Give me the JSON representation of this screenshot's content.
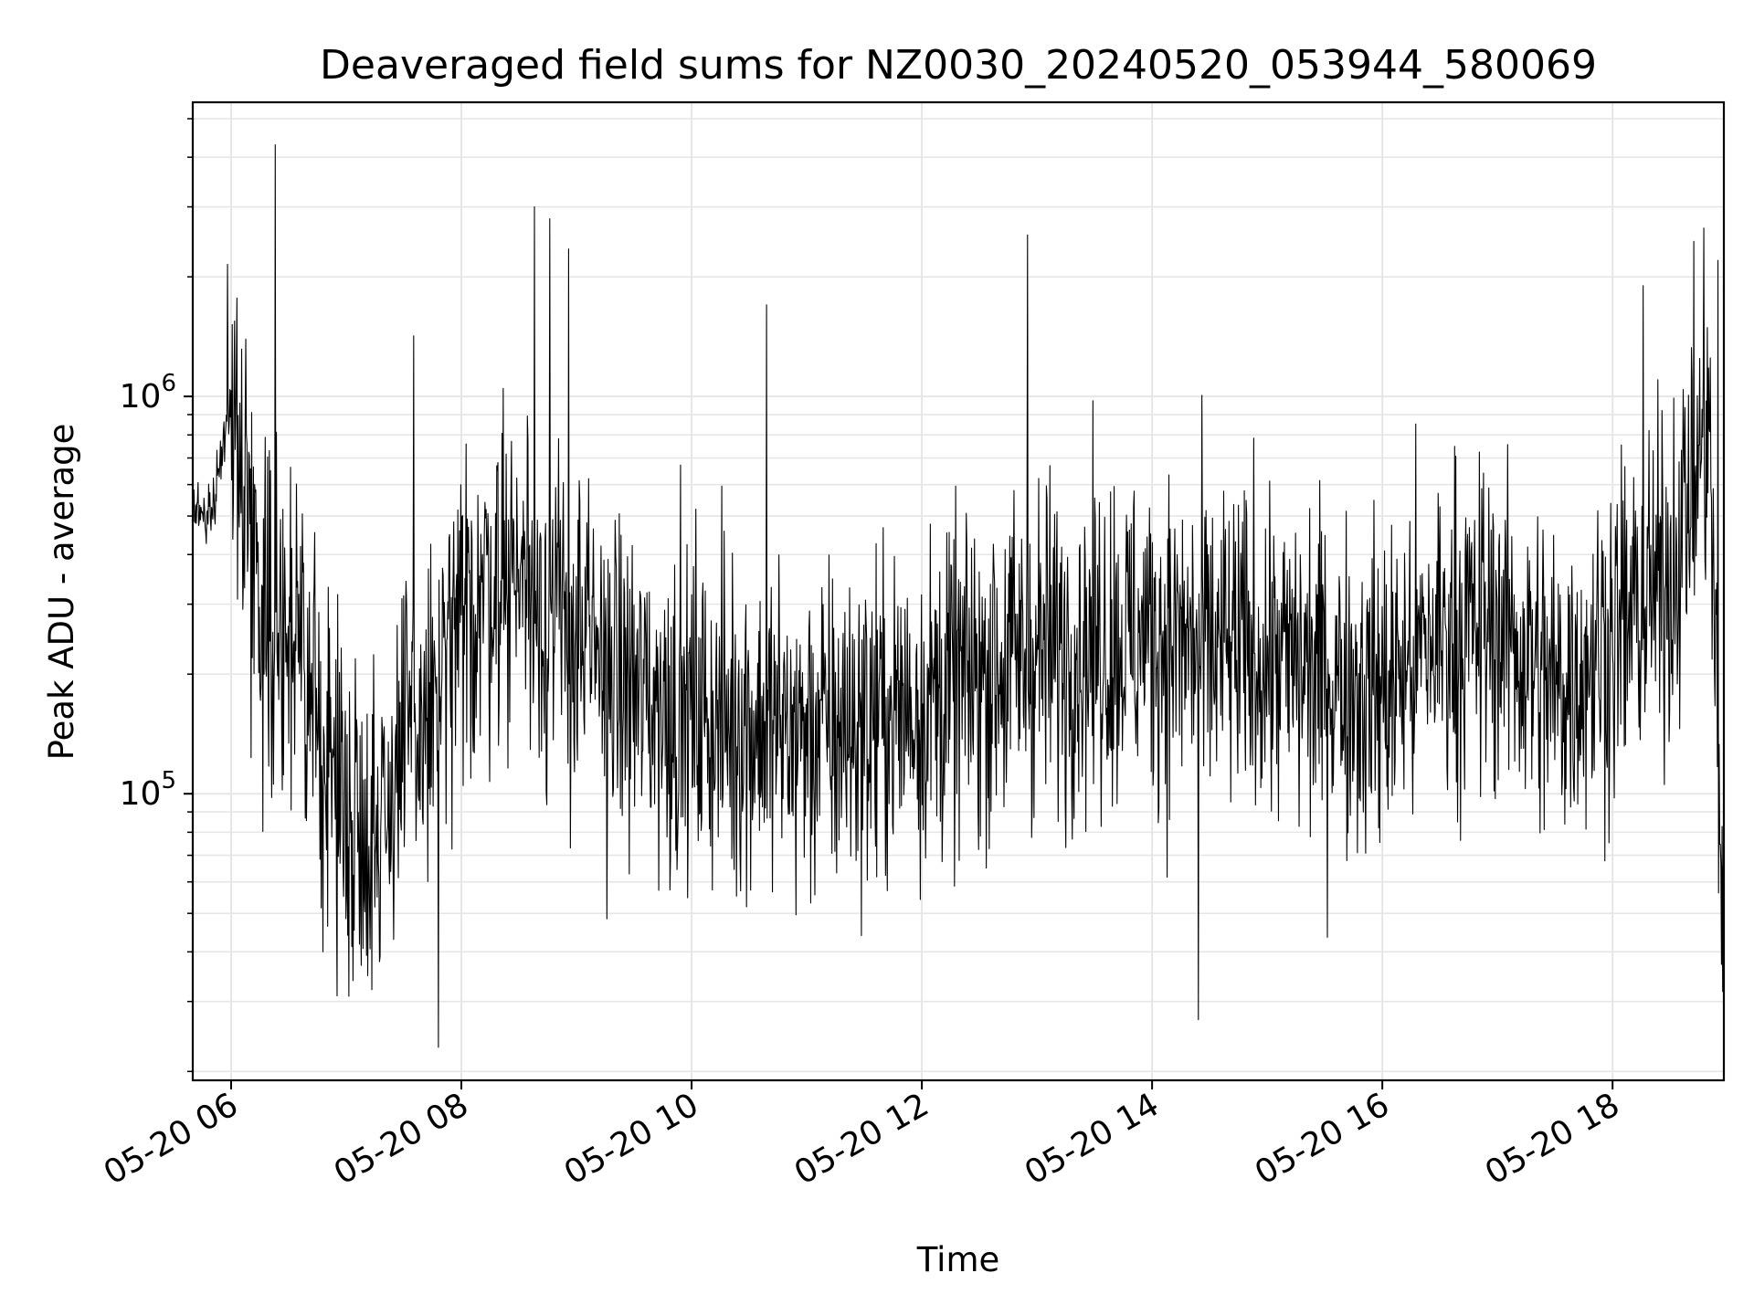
{
  "chart_data": {
    "type": "line",
    "title": "Deaveraged field sums for NZ0030_20240520_053944_580069",
    "xlabel": "Time",
    "ylabel": "Peak ADU - average",
    "x_scale": "time",
    "y_scale": "log",
    "xlim": [
      "2024-05-20 05:40",
      "2024-05-20 18:58"
    ],
    "ylim": [
      19000,
      5500000
    ],
    "x_tick_labels": [
      "05-20 06",
      "05-20 08",
      "05-20 10",
      "05-20 12",
      "05-20 14",
      "05-20 16",
      "05-20 18"
    ],
    "y_tick_labels": [
      {
        "base": "10",
        "exponent": "5",
        "value": 100000
      },
      {
        "base": "10",
        "exponent": "6",
        "value": 1000000
      }
    ],
    "grid": true,
    "line_color": "#000000",
    "grid_color": "#e6e6e6",
    "series": [
      {
        "x": [
          "2024-05-20 05:40",
          "2024-05-20 05:50",
          "2024-05-20 06:00",
          "2024-05-20 06:15",
          "2024-05-20 06:30",
          "2024-05-20 06:45",
          "2024-05-20 07:00",
          "2024-05-20 07:15",
          "2024-05-20 07:30",
          "2024-05-20 07:45",
          "2024-05-20 08:00",
          "2024-05-20 08:15",
          "2024-05-20 08:30",
          "2024-05-20 08:45",
          "2024-05-20 09:00",
          "2024-05-20 09:30",
          "2024-05-20 10:00",
          "2024-05-20 10:30",
          "2024-05-20 11:00",
          "2024-05-20 11:30",
          "2024-05-20 12:00",
          "2024-05-20 12:30",
          "2024-05-20 13:00",
          "2024-05-20 13:30",
          "2024-05-20 14:00",
          "2024-05-20 14:30",
          "2024-05-20 15:00",
          "2024-05-20 15:30",
          "2024-05-20 16:00",
          "2024-05-20 16:30",
          "2024-05-20 17:00",
          "2024-05-20 17:30",
          "2024-05-20 18:00",
          "2024-05-20 18:30",
          "2024-05-20 18:50",
          "2024-05-20 18:58"
        ],
        "values": [
          500000,
          520000,
          1000000,
          320000,
          250000,
          150000,
          90000,
          80000,
          130000,
          160000,
          260000,
          350000,
          380000,
          280000,
          240000,
          180000,
          160000,
          150000,
          140000,
          150000,
          170000,
          200000,
          230000,
          240000,
          250000,
          230000,
          220000,
          200000,
          180000,
          250000,
          270000,
          180000,
          250000,
          350000,
          900000,
          40000
        ],
        "peaks": [
          {
            "x": "2024-05-20 05:58",
            "y": 2150000
          },
          {
            "x": "2024-05-20 06:23",
            "y": 4300000
          },
          {
            "x": "2024-05-20 07:35",
            "y": 1420000
          },
          {
            "x": "2024-05-20 07:48",
            "y": 23000
          },
          {
            "x": "2024-05-20 08:38",
            "y": 3000000
          },
          {
            "x": "2024-05-20 08:46",
            "y": 2800000
          },
          {
            "x": "2024-05-20 08:56",
            "y": 2350000
          },
          {
            "x": "2024-05-20 10:39",
            "y": 1700000
          },
          {
            "x": "2024-05-20 12:55",
            "y": 2550000
          },
          {
            "x": "2024-05-20 14:24",
            "y": 27000
          },
          {
            "x": "2024-05-20 18:16",
            "y": 1900000
          },
          {
            "x": "2024-05-20 18:55",
            "y": 2200000
          }
        ]
      }
    ]
  }
}
